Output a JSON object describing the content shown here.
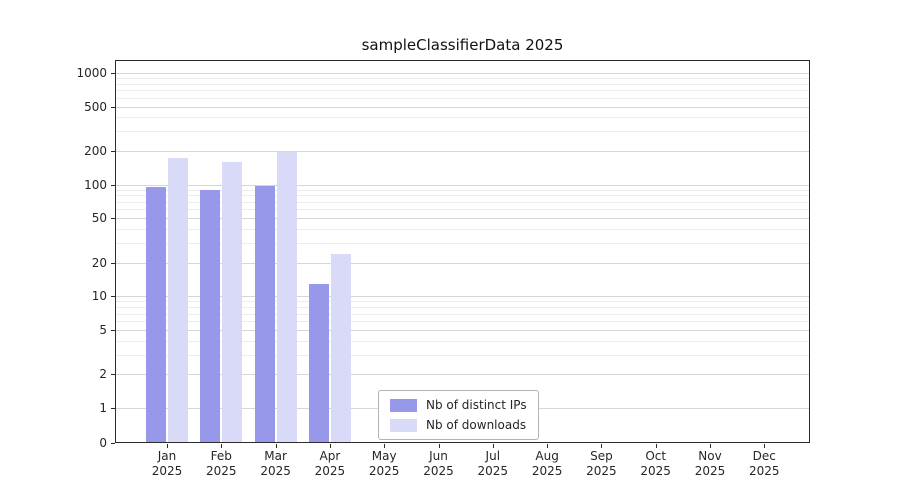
{
  "chart_data": {
    "type": "bar",
    "title": "sampleClassifierData 2025",
    "categories": [
      "Jan",
      "Feb",
      "Mar",
      "Apr",
      "May",
      "Jun",
      "Jul",
      "Aug",
      "Sep",
      "Oct",
      "Nov",
      "Dec"
    ],
    "x_year_label": "2025",
    "yscale": "symlog",
    "yticks": [
      0,
      1,
      2,
      5,
      10,
      20,
      50,
      100,
      200,
      500,
      1000
    ],
    "ylim": [
      0,
      1300
    ],
    "grid": "horizontal major and minor gridlines",
    "legend_position": "lower center inside plot",
    "series": [
      {
        "name": "Nb of distinct IPs",
        "color": "#9898ea",
        "values": [
          95,
          90,
          98,
          13,
          0,
          0,
          0,
          0,
          0,
          0,
          0,
          0
        ]
      },
      {
        "name": "Nb of downloads",
        "color": "#d9d9f8",
        "values": [
          175,
          160,
          195,
          24,
          0,
          0,
          0,
          0,
          0,
          0,
          0,
          0
        ]
      }
    ],
    "colors": {
      "axis": "#2b2b2b",
      "grid_major": "#d6d6d6",
      "grid_minor": "#ececec",
      "background": "#ffffff"
    }
  }
}
